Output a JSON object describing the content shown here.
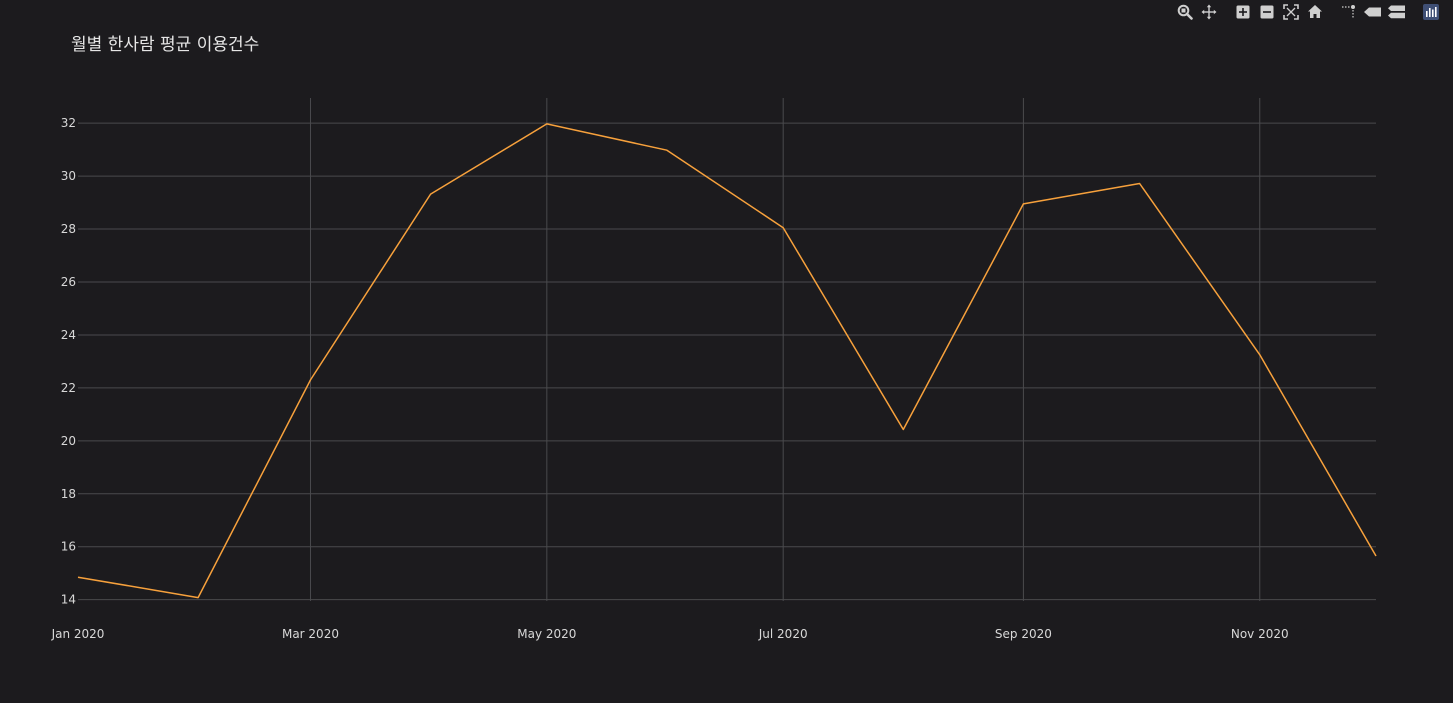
{
  "chart_data": {
    "type": "line",
    "title": "월별 한사람 평균 이용건수",
    "xlabel": "",
    "ylabel": "",
    "x": [
      "2020-01-01",
      "2020-02-01",
      "2020-03-01",
      "2020-04-01",
      "2020-05-01",
      "2020-06-01",
      "2020-07-01",
      "2020-08-01",
      "2020-09-01",
      "2020-10-01",
      "2020-11-01",
      "2020-12-01"
    ],
    "x_ticks": [
      {
        "date": "2020-01-01",
        "label": "Jan 2020"
      },
      {
        "date": "2020-03-01",
        "label": "Mar 2020"
      },
      {
        "date": "2020-05-01",
        "label": "May 2020"
      },
      {
        "date": "2020-07-01",
        "label": "Jul 2020"
      },
      {
        "date": "2020-09-01",
        "label": "Sep 2020"
      },
      {
        "date": "2020-11-01",
        "label": "Nov 2020"
      }
    ],
    "xlim": [
      "2020-01-01",
      "2020-12-01"
    ],
    "series": [
      {
        "values": [
          14.85,
          14.08,
          22.3,
          29.32,
          31.97,
          30.98,
          28.05,
          20.43,
          28.95,
          29.72,
          23.25,
          15.65
        ],
        "color": "#f7a13c"
      }
    ],
    "y_ticks": [
      14,
      16,
      18,
      20,
      22,
      24,
      26,
      28,
      30,
      32
    ],
    "ylim": [
      13.95,
      32.95
    ],
    "grid": true,
    "legend": "none"
  },
  "colors": {
    "background": "#1c1b1e",
    "grid": "#4a4a4d",
    "line": "#f7a13c",
    "text": "#d8d8d8",
    "modebar_icon": "#cfcfcf",
    "modebar_logo": "#3f4f75"
  },
  "modebar": {
    "groups": [
      [
        "zoom-icon",
        "pan-icon"
      ],
      [
        "zoom-in-icon",
        "zoom-out-icon",
        "autoscale-icon",
        "reset-axes-icon"
      ],
      [
        "spike-lines-icon",
        "hover-closest-icon",
        "hover-compare-icon"
      ],
      [
        "plotly-logo-icon"
      ]
    ]
  }
}
